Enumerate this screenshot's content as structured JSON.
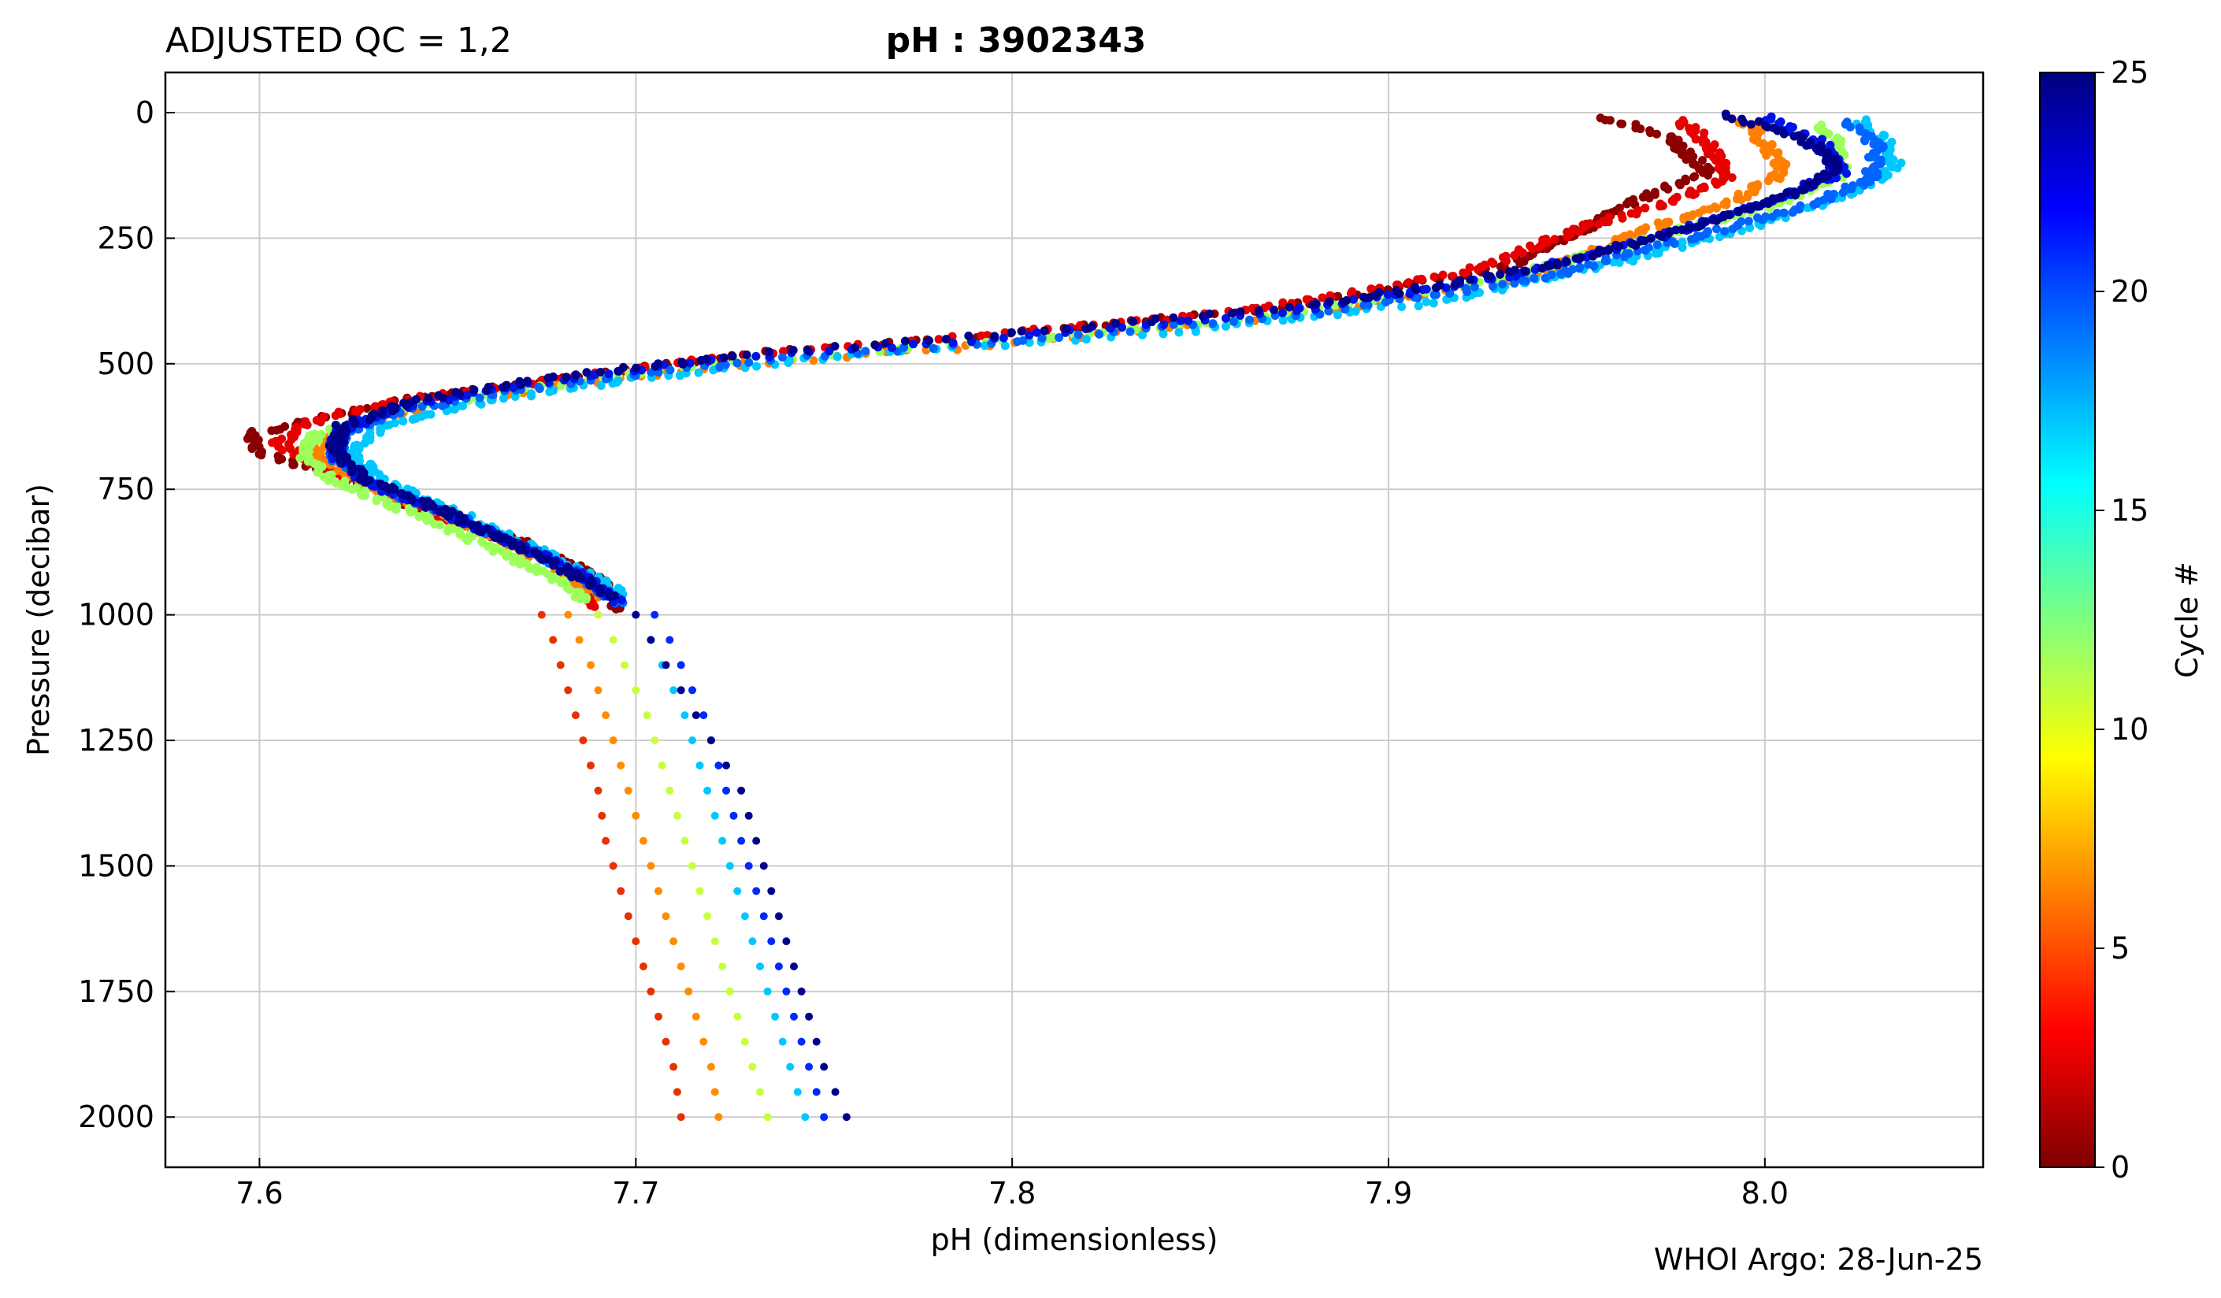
{
  "chart_data": {
    "type": "scatter",
    "title_left": "ADJUSTED QC = 1,2",
    "title": "pH : 3902343",
    "xlabel": "pH  (dimensionless)",
    "ylabel": "Pressure  (decibar)",
    "footer": "WHOI Argo: 28-Jun-25",
    "xlim": [
      7.575,
      8.058
    ],
    "ylim": [
      2100,
      -80
    ],
    "y_inverted": true,
    "grid": true,
    "x_ticks": [
      7.6,
      7.7,
      7.8,
      7.9,
      8.0
    ],
    "x_tick_labels": [
      "7.6",
      "7.7",
      "7.8",
      "7.9",
      "8.0"
    ],
    "y_ticks": [
      0,
      250,
      500,
      750,
      1000,
      1250,
      1500,
      1750,
      2000
    ],
    "y_tick_labels": [
      "0",
      "250",
      "500",
      "750",
      "1000",
      "1250",
      "1500",
      "1750",
      "2000"
    ],
    "colorbar": {
      "label": "Cycle #",
      "colormap": "jet",
      "range": [
        0,
        25
      ],
      "ticks": [
        0,
        5,
        10,
        15,
        20,
        25
      ],
      "tick_labels": [
        "0",
        "5",
        "10",
        "15",
        "20",
        "25"
      ],
      "colors": [
        "#7f0000",
        "#ff0000",
        "#ff7f00",
        "#ffff00",
        "#7fff7f",
        "#00ffff",
        "#007fff",
        "#0000ff",
        "#00007f"
      ]
    },
    "series": [
      {
        "cycle": 1,
        "color": "#8b0000",
        "points": [
          [
            7.958,
            10
          ],
          [
            7.975,
            50
          ],
          [
            7.985,
            120
          ],
          [
            7.97,
            160
          ],
          [
            7.96,
            200
          ],
          [
            7.93,
            310
          ],
          [
            7.87,
            390
          ],
          [
            7.8,
            440
          ],
          [
            7.73,
            480
          ],
          [
            7.68,
            530
          ],
          [
            7.64,
            570
          ],
          [
            7.615,
            610
          ],
          [
            7.598,
            640
          ],
          [
            7.6,
            680
          ],
          [
            7.62,
            720
          ],
          [
            7.64,
            780
          ],
          [
            7.66,
            830
          ],
          [
            7.678,
            880
          ],
          [
            7.69,
            930
          ],
          [
            7.696,
            990
          ]
        ]
      },
      {
        "cycle": 3,
        "color": "#e60000",
        "points": [
          [
            7.978,
            15
          ],
          [
            7.985,
            60
          ],
          [
            7.99,
            130
          ],
          [
            7.975,
            180
          ],
          [
            7.955,
            220
          ],
          [
            7.92,
            320
          ],
          [
            7.86,
            395
          ],
          [
            7.79,
            445
          ],
          [
            7.725,
            485
          ],
          [
            7.675,
            535
          ],
          [
            7.635,
            575
          ],
          [
            7.612,
            620
          ],
          [
            7.605,
            660
          ],
          [
            7.615,
            700
          ],
          [
            7.635,
            760
          ],
          [
            7.655,
            820
          ],
          [
            7.672,
            870
          ],
          [
            7.685,
            925
          ],
          [
            7.69,
            985
          ]
        ]
      },
      {
        "cycle": 6,
        "color": "#ff8000",
        "points": [
          [
            7.995,
            20
          ],
          [
            8.0,
            60
          ],
          [
            8.005,
            120
          ],
          [
            7.99,
            180
          ],
          [
            7.97,
            230
          ],
          [
            7.94,
            320
          ],
          [
            7.88,
            400
          ],
          [
            7.8,
            460
          ],
          [
            7.73,
            500
          ],
          [
            7.68,
            545
          ],
          [
            7.645,
            585
          ],
          [
            7.622,
            630
          ],
          [
            7.615,
            680
          ],
          [
            7.625,
            730
          ],
          [
            7.645,
            790
          ],
          [
            7.665,
            850
          ],
          [
            7.68,
            910
          ],
          [
            7.69,
            970
          ]
        ]
      },
      {
        "cycle": 11,
        "color": "#9cff5a",
        "points": [
          [
            8.015,
            25
          ],
          [
            8.02,
            70
          ],
          [
            8.02,
            130
          ],
          [
            8.0,
            190
          ],
          [
            7.97,
            250
          ],
          [
            7.93,
            330
          ],
          [
            7.87,
            405
          ],
          [
            7.79,
            460
          ],
          [
            7.72,
            500
          ],
          [
            7.67,
            550
          ],
          [
            7.635,
            595
          ],
          [
            7.615,
            640
          ],
          [
            7.612,
            690
          ],
          [
            7.622,
            740
          ],
          [
            7.642,
            800
          ],
          [
            7.66,
            860
          ],
          [
            7.675,
            915
          ],
          [
            7.688,
            975
          ]
        ]
      },
      {
        "cycle": 16,
        "color": "#00c8ff",
        "points": [
          [
            8.025,
            15
          ],
          [
            8.032,
            60
          ],
          [
            8.035,
            110
          ],
          [
            8.02,
            170
          ],
          [
            7.995,
            230
          ],
          [
            7.96,
            300
          ],
          [
            7.91,
            380
          ],
          [
            7.84,
            440
          ],
          [
            7.76,
            480
          ],
          [
            7.7,
            530
          ],
          [
            7.66,
            575
          ],
          [
            7.632,
            625
          ],
          [
            7.625,
            675
          ],
          [
            7.632,
            730
          ],
          [
            7.65,
            790
          ],
          [
            7.668,
            850
          ],
          [
            7.684,
            905
          ],
          [
            7.698,
            965
          ]
        ]
      },
      {
        "cycle": 19,
        "color": "#0064ff",
        "points": [
          [
            8.022,
            20
          ],
          [
            8.03,
            70
          ],
          [
            8.028,
            130
          ],
          [
            8.01,
            190
          ],
          [
            7.98,
            250
          ],
          [
            7.94,
            330
          ],
          [
            7.88,
            400
          ],
          [
            7.8,
            455
          ],
          [
            7.73,
            495
          ],
          [
            7.675,
            545
          ],
          [
            7.64,
            590
          ],
          [
            7.622,
            640
          ],
          [
            7.62,
            690
          ],
          [
            7.632,
            745
          ],
          [
            7.652,
            805
          ],
          [
            7.67,
            865
          ],
          [
            7.685,
            920
          ],
          [
            7.696,
            980
          ]
        ]
      },
      {
        "cycle": 22,
        "color": "#0014e6",
        "points": [
          [
            8.0,
            10
          ],
          [
            8.015,
            60
          ],
          [
            8.02,
            120
          ],
          [
            8.0,
            180
          ],
          [
            7.975,
            240
          ],
          [
            7.935,
            320
          ],
          [
            7.875,
            395
          ],
          [
            7.795,
            450
          ],
          [
            7.725,
            490
          ],
          [
            7.67,
            540
          ],
          [
            7.638,
            585
          ],
          [
            7.621,
            635
          ],
          [
            7.62,
            685
          ],
          [
            7.63,
            740
          ],
          [
            7.65,
            800
          ],
          [
            7.668,
            860
          ],
          [
            7.684,
            915
          ],
          [
            7.696,
            975
          ]
        ]
      },
      {
        "cycle": 25,
        "color": "#00008b",
        "points": [
          [
            7.99,
            5
          ],
          [
            8.01,
            50
          ],
          [
            8.02,
            110
          ],
          [
            8.005,
            170
          ],
          [
            7.98,
            230
          ],
          [
            7.94,
            310
          ],
          [
            7.88,
            385
          ],
          [
            7.8,
            440
          ],
          [
            7.73,
            480
          ],
          [
            7.675,
            530
          ],
          [
            7.64,
            575
          ],
          [
            7.622,
            625
          ],
          [
            7.62,
            675
          ],
          [
            7.628,
            730
          ],
          [
            7.648,
            790
          ],
          [
            7.665,
            850
          ],
          [
            7.68,
            905
          ],
          [
            7.694,
            965
          ]
        ]
      }
    ],
    "deep_points": {
      "pressures": [
        1000,
        1050,
        1100,
        1150,
        1200,
        1250,
        1300,
        1350,
        1400,
        1450,
        1500,
        1550,
        1600,
        1650,
        1700,
        1750,
        1800,
        1850,
        1900,
        1950,
        2000
      ],
      "columns": [
        {
          "cycle": 3,
          "color": "#e63200",
          "x": [
            7.675,
            7.678,
            7.68,
            7.682,
            7.684,
            7.686,
            7.688,
            7.69,
            7.691,
            7.692,
            7.694,
            7.696,
            7.698,
            7.7,
            7.702,
            7.704,
            7.706,
            7.708,
            7.71,
            7.711,
            7.712
          ]
        },
        {
          "cycle": 6,
          "color": "#ff8c00",
          "x": [
            7.682,
            7.685,
            7.688,
            7.69,
            7.692,
            7.694,
            7.696,
            7.698,
            7.7,
            7.702,
            7.704,
            7.706,
            7.708,
            7.71,
            7.712,
            7.714,
            7.716,
            7.718,
            7.72,
            7.721,
            7.722
          ]
        },
        {
          "cycle": 10,
          "color": "#c8ff3c",
          "x": [
            7.69,
            7.694,
            7.697,
            7.7,
            7.703,
            7.705,
            7.707,
            7.709,
            7.711,
            7.713,
            7.715,
            7.717,
            7.719,
            7.721,
            7.723,
            7.725,
            7.727,
            7.729,
            7.731,
            7.733,
            7.735
          ]
        },
        {
          "cycle": 16,
          "color": "#00c8ff",
          "x": [
            7.7,
            7.704,
            7.707,
            7.71,
            7.713,
            7.715,
            7.717,
            7.719,
            7.721,
            7.723,
            7.725,
            7.727,
            7.729,
            7.731,
            7.733,
            7.735,
            7.737,
            7.739,
            7.741,
            7.743,
            7.745
          ]
        },
        {
          "cycle": 21,
          "color": "#0028ff",
          "x": [
            7.705,
            7.709,
            7.712,
            7.715,
            7.718,
            7.72,
            7.722,
            7.724,
            7.726,
            7.728,
            7.73,
            7.732,
            7.734,
            7.736,
            7.738,
            7.74,
            7.742,
            7.744,
            7.746,
            7.748,
            7.75
          ]
        },
        {
          "cycle": 25,
          "color": "#00008b",
          "x": [
            7.7,
            7.704,
            7.708,
            7.712,
            7.716,
            7.72,
            7.724,
            7.728,
            7.73,
            7.732,
            7.734,
            7.736,
            7.738,
            7.74,
            7.742,
            7.744,
            7.746,
            7.748,
            7.75,
            7.753,
            7.756
          ]
        }
      ]
    }
  }
}
